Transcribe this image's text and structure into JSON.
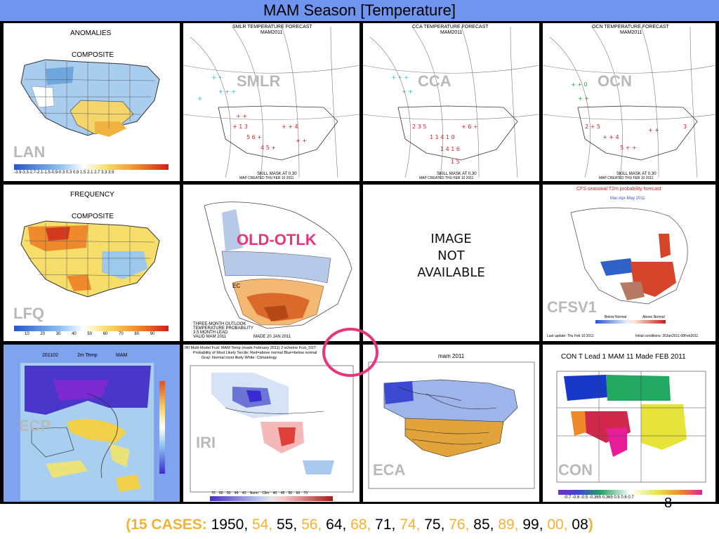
{
  "title": "MAM Season [Temperature]",
  "panels": {
    "lan": {
      "label": "LAN",
      "header1": "ANOMALIES",
      "header2": "COMPOSITE",
      "scale": "-3.9-3.3-2.7-2.1-1.5-0.9-0.3 0.3 0.9 1.5 2.1 2.7 3.3 3.9"
    },
    "smlr": {
      "label": "SMLR",
      "header1": "SMLR TEMPERATURE FORECAST",
      "header2": "MAM2011",
      "footer1": "SKILL MASK AT 0.30",
      "footer2": "MAP CREATED THU FEB 10 2011"
    },
    "cca": {
      "label": "CCA",
      "header1": "CCA TEMPERATURE FORECAST",
      "header2": "MAM2011",
      "footer1": "SKILL MASK AT 0.30",
      "footer2": "MAP CREATED THU FEB 10 2011"
    },
    "ocn": {
      "label": "OCN",
      "header1": "OCN TEMPERATURE FORECAST",
      "header2": "MAM2011",
      "footer1": "SKILL MASK AT 0.30",
      "footer2": "MAP CREATED THU FEB 10 2011"
    },
    "lfq": {
      "label": "LFQ",
      "header1": "FREQUENCY",
      "header2": "COMPOSITE",
      "scale": "10 20 30 40 50 60 70 80 90"
    },
    "old_otlk": {
      "label": "OLD-OTLK",
      "caption1": "THREE-MONTH OUTLOOK",
      "caption2": "TEMPERATURE PROBABILITY",
      "caption3": "3.5 MONTH LEAD",
      "caption4": "VALID MAM 2011",
      "caption5": "MADE 20 JAN 2011",
      "region_ec": "EC"
    },
    "not_available": {
      "line1": "IMAGE",
      "line2": "NOT",
      "line3": "AVAILABLE"
    },
    "cfsv1": {
      "label": "CFSV1",
      "header1": "CFS seasonal T2m probability forecast",
      "header2": "Mar-Apr-May 2011",
      "legend_left": "Below Normal",
      "legend_right": "Above Normal",
      "footer_left": "Last update: Thu Feb 10 2011",
      "footer_right": "Initial conditions: 30Jan2011-08Feb2011"
    },
    "ecp": {
      "label": "ECP",
      "header1": "201102",
      "header2": "2m Temp",
      "header3": "MAM"
    },
    "iri": {
      "label": "IRI",
      "header1": "IRI Multi-Model Fcst: MAM Temp (made February 2011)  2-scheme  Fcst_SST",
      "header2": "Probability of Most Likely Tercile: Red=above normal  Blue=below normal",
      "header3": "Gray: Normal most likely    White: Climatology",
      "scale": "70 60 50 45 40 Norm Clim 40 45 50 60 70"
    },
    "eca": {
      "label": "ECA",
      "header1": "mam 2011"
    },
    "con": {
      "label": "CON",
      "header1": "CON T Lead 1 MAM 11 Made FEB 2011",
      "scale": "-0.7  -0.6  -0.5  -0.365  0.365  0.5  0.6  0.7"
    }
  },
  "page_number": "8",
  "footer": {
    "prefix": "(",
    "label": "15 CASES:",
    "years": [
      {
        "text": "1950",
        "highlight": false
      },
      {
        "text": "54",
        "highlight": true
      },
      {
        "text": "55",
        "highlight": false
      },
      {
        "text": "56",
        "highlight": true
      },
      {
        "text": "64",
        "highlight": false
      },
      {
        "text": "68",
        "highlight": true
      },
      {
        "text": "71",
        "highlight": false
      },
      {
        "text": "74",
        "highlight": true
      },
      {
        "text": "75",
        "highlight": false
      },
      {
        "text": "76",
        "highlight": true
      },
      {
        "text": "85",
        "highlight": false
      },
      {
        "text": "89",
        "highlight": true
      },
      {
        "text": "99",
        "highlight": false
      },
      {
        "text": "00",
        "highlight": true
      },
      {
        "text": "08",
        "highlight": false
      }
    ],
    "suffix": ")"
  },
  "colors": {
    "title_bar": "#6f95ef",
    "highlight_year": "#f2b233",
    "old_otlk_label": "#e8367a",
    "marker_circle": "#e8367a",
    "panel_label_gray": "#b9b9b9"
  }
}
